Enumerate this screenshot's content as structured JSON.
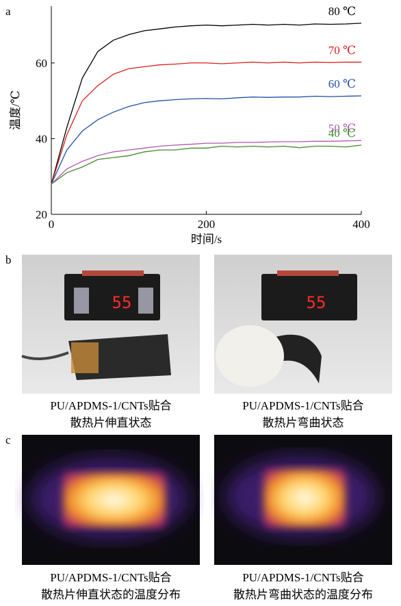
{
  "chart_data": {
    "type": "line",
    "panel_label": "a",
    "x_label": "时间/s",
    "y_label": "温度/℃",
    "x": [
      0,
      20,
      40,
      60,
      80,
      100,
      120,
      140,
      160,
      180,
      200,
      220,
      240,
      260,
      280,
      300,
      320,
      340,
      360,
      380,
      400
    ],
    "series": [
      {
        "name": "80 ℃",
        "color": "#000000",
        "values": [
          28,
          43,
          56,
          63,
          66,
          67.5,
          68.5,
          69,
          69.5,
          69.8,
          70,
          69.8,
          70,
          70.2,
          70,
          70.2,
          70,
          70.3,
          70.2,
          70.3,
          70.5
        ]
      },
      {
        "name": "70 ℃",
        "color": "#d81e1e",
        "values": [
          28,
          41,
          50,
          54,
          57,
          58.5,
          59,
          59.5,
          59.7,
          60,
          60,
          59.8,
          60,
          60.2,
          60,
          60.2,
          60,
          60.2,
          60.1,
          60.2,
          60.2
        ]
      },
      {
        "name": "60 ℃",
        "color": "#1f4fa8",
        "values": [
          28,
          37,
          42,
          45,
          47,
          48.5,
          49.5,
          50,
          50.3,
          50.5,
          50.6,
          50.5,
          50.8,
          51,
          50.9,
          51,
          51,
          51.2,
          51.1,
          51.2,
          51.3
        ]
      },
      {
        "name": "50 ℃",
        "color": "#b157b0",
        "values": [
          28,
          32,
          34,
          35.5,
          36.5,
          37,
          37.5,
          38,
          38.3,
          38.5,
          38.8,
          38.8,
          39,
          39,
          39.1,
          39.2,
          39.2,
          39.3,
          39.3,
          39.4,
          39.5
        ]
      },
      {
        "name": "40 ℃",
        "color": "#3f8a2a",
        "values": [
          28,
          31,
          32.5,
          34.5,
          35,
          35.5,
          36.5,
          37,
          37,
          37.5,
          37.5,
          38,
          37.8,
          38,
          37.8,
          38,
          37.6,
          38,
          38,
          37.8,
          38.3
        ]
      }
    ],
    "xlim": [
      0,
      400
    ],
    "ylim": [
      20,
      75
    ],
    "xticks": [
      0,
      200,
      400
    ],
    "yticks": [
      20,
      40,
      60
    ]
  },
  "panel_b": {
    "label": "b",
    "display_reading": "55",
    "captions": [
      [
        "PU/APDMS-1/CNTs贴合",
        "散热片伸直状态"
      ],
      [
        "PU/APDMS-1/CNTs贴合",
        "散热片弯曲状态"
      ]
    ]
  },
  "panel_c": {
    "label": "c",
    "captions": [
      [
        "PU/APDMS-1/CNTs贴合",
        "散热片伸直状态的温度分布"
      ],
      [
        "PU/APDMS-1/CNTs贴合",
        "散热片弯曲状态的温度分布"
      ]
    ]
  }
}
